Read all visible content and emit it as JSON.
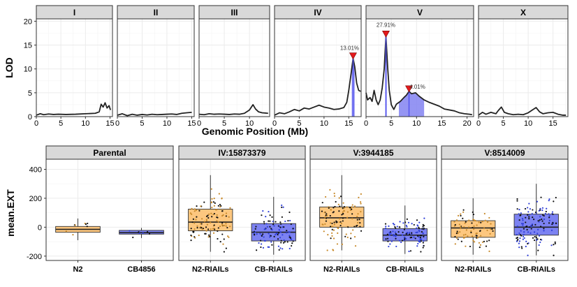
{
  "colors": {
    "strip_bg": "#d9d9d9",
    "line": "#222222",
    "peak_marker": "#e41a1c",
    "ci_fill": "#7b7bf0",
    "ci_line": "#5555ee",
    "n2_fill": "#fdc77f",
    "n2_points": "#c88a2a",
    "cb_fill": "#7c82f2",
    "cb_points": "#2f3fd8",
    "grid": "#ebebeb"
  },
  "chart_data": [
    {
      "type": "line",
      "title": "",
      "xlabel": "Genomic Position (Mb)",
      "ylabel": "LOD",
      "ylim": [
        0,
        20.5
      ],
      "yticks": [
        0,
        5,
        10,
        15,
        20
      ],
      "facets": [
        {
          "label": "I",
          "xlim": [
            0,
            15.5
          ],
          "xticks": [
            0,
            5,
            10,
            15
          ],
          "points": [
            [
              0,
              0.3
            ],
            [
              0.8,
              0.6
            ],
            [
              1.5,
              0.4
            ],
            [
              2.5,
              0.55
            ],
            [
              3.5,
              0.45
            ],
            [
              4.5,
              0.5
            ],
            [
              6,
              0.45
            ],
            [
              8,
              0.5
            ],
            [
              10,
              0.6
            ],
            [
              12,
              0.7
            ],
            [
              12.8,
              1.0
            ],
            [
              13.2,
              2.6
            ],
            [
              13.6,
              2.0
            ],
            [
              14.0,
              2.9
            ],
            [
              14.4,
              1.8
            ],
            [
              14.8,
              2.3
            ],
            [
              15.1,
              1.4
            ]
          ],
          "peak": null,
          "ci": null
        },
        {
          "label": "II",
          "xlim": [
            0,
            15.5
          ],
          "xticks": [
            0,
            5,
            10,
            15
          ],
          "points": [
            [
              0,
              0.3
            ],
            [
              1,
              0.6
            ],
            [
              2,
              0.2
            ],
            [
              3,
              0.5
            ],
            [
              4,
              0.3
            ],
            [
              5,
              0.45
            ],
            [
              6,
              0.35
            ],
            [
              7,
              0.5
            ],
            [
              8,
              0.4
            ],
            [
              9,
              0.45
            ],
            [
              10,
              0.5
            ],
            [
              11,
              0.55
            ],
            [
              12,
              0.45
            ],
            [
              13,
              0.7
            ],
            [
              14,
              0.8
            ],
            [
              15,
              0.9
            ]
          ],
          "peak": null,
          "ci": null
        },
        {
          "label": "III",
          "xlim": [
            0,
            14
          ],
          "xticks": [
            0,
            5,
            10
          ],
          "points": [
            [
              0,
              0.5
            ],
            [
              1,
              0.4
            ],
            [
              2,
              0.6
            ],
            [
              3,
              0.5
            ],
            [
              4,
              0.55
            ],
            [
              5,
              0.5
            ],
            [
              6,
              0.45
            ],
            [
              7,
              0.55
            ],
            [
              8,
              0.5
            ],
            [
              9,
              0.7
            ],
            [
              10,
              1.4
            ],
            [
              10.7,
              2.5
            ],
            [
              11.2,
              1.6
            ],
            [
              11.8,
              1.0
            ],
            [
              12.5,
              0.8
            ],
            [
              13.7,
              0.7
            ]
          ],
          "peak": null,
          "ci": null
        },
        {
          "label": "IV",
          "xlim": [
            0,
            17.5
          ],
          "xticks": [
            0,
            5,
            10,
            15
          ],
          "points": [
            [
              0,
              0.3
            ],
            [
              1,
              0.8
            ],
            [
              2,
              0.6
            ],
            [
              3,
              1.0
            ],
            [
              4,
              1.5
            ],
            [
              5,
              1.2
            ],
            [
              6,
              1.8
            ],
            [
              7,
              1.6
            ],
            [
              8,
              2.0
            ],
            [
              9,
              2.4
            ],
            [
              10,
              2.0
            ],
            [
              11,
              1.8
            ],
            [
              12,
              1.5
            ],
            [
              13,
              1.6
            ],
            [
              14,
              1.9
            ],
            [
              14.6,
              3.0
            ],
            [
              15.0,
              5.5
            ],
            [
              15.4,
              8.5
            ],
            [
              15.87,
              12.2
            ],
            [
              16.2,
              10.5
            ],
            [
              16.6,
              7.0
            ],
            [
              17.0,
              5.5
            ],
            [
              17.4,
              5.3
            ]
          ],
          "peak": {
            "x": 15.87,
            "y": 12.2,
            "label": "13.01%"
          },
          "ci": [
            15.6,
            16.2
          ]
        },
        {
          "label": "V",
          "xlim": [
            0,
            21.3
          ],
          "xticks": [
            0,
            5,
            10,
            15,
            20
          ],
          "points": [
            [
              0,
              5.0
            ],
            [
              0.3,
              3.5
            ],
            [
              0.8,
              4.0
            ],
            [
              1.2,
              3.2
            ],
            [
              1.6,
              5.5
            ],
            [
              2.0,
              3.5
            ],
            [
              2.4,
              2.5
            ],
            [
              2.8,
              3.5
            ],
            [
              3.2,
              6.0
            ],
            [
              3.6,
              10.0
            ],
            [
              3.94,
              16.8
            ],
            [
              4.3,
              10.0
            ],
            [
              4.6,
              5.5
            ],
            [
              5.0,
              2.5
            ],
            [
              5.5,
              1.5
            ],
            [
              6.0,
              2.6
            ],
            [
              6.8,
              3.2
            ],
            [
              7.5,
              4.0
            ],
            [
              8.0,
              4.5
            ],
            [
              8.51,
              5.3
            ],
            [
              9.0,
              4.8
            ],
            [
              9.8,
              5.0
            ],
            [
              10.5,
              4.3
            ],
            [
              11.5,
              3.5
            ],
            [
              12.5,
              3.0
            ],
            [
              13.5,
              2.6
            ],
            [
              14.5,
              2.2
            ],
            [
              15.5,
              1.6
            ],
            [
              16.5,
              1.4
            ],
            [
              17.5,
              1.2
            ],
            [
              18.5,
              0.8
            ],
            [
              19.5,
              0.6
            ],
            [
              20.5,
              0.5
            ],
            [
              21.0,
              0.4
            ]
          ],
          "peak": {
            "x": 3.94,
            "y": 16.8,
            "label": "27.91%"
          },
          "peak2": {
            "x": 8.51,
            "y": 5.3,
            "label": "4.01%"
          },
          "ci": [
            3.8,
            4.1
          ],
          "ci2": [
            6.5,
            11.5
          ]
        },
        {
          "label": "X",
          "xlim": [
            0,
            18
          ],
          "xticks": [
            0,
            5,
            10,
            15
          ],
          "points": [
            [
              0,
              0.3
            ],
            [
              0.8,
              0.9
            ],
            [
              1.5,
              0.5
            ],
            [
              2.5,
              0.9
            ],
            [
              3.5,
              0.6
            ],
            [
              4,
              1.3
            ],
            [
              4.6,
              2.0
            ],
            [
              5.2,
              0.9
            ],
            [
              6,
              0.6
            ],
            [
              7,
              0.4
            ],
            [
              8,
              0.5
            ],
            [
              9,
              0.4
            ],
            [
              10,
              0.8
            ],
            [
              11,
              1.5
            ],
            [
              11.6,
              1.9
            ],
            [
              12.3,
              1.0
            ],
            [
              13,
              0.6
            ],
            [
              14,
              0.8
            ],
            [
              15,
              0.9
            ],
            [
              16,
              0.5
            ],
            [
              17,
              0.3
            ],
            [
              17.6,
              0.3
            ]
          ],
          "peak": null,
          "ci": null
        }
      ]
    },
    {
      "type": "box",
      "title": "",
      "xlabel": "",
      "ylabel": "mean.EXT",
      "ylim": [
        -230,
        470
      ],
      "yticks": [
        -200,
        0,
        200,
        400
      ],
      "facets": [
        {
          "label": "Parental",
          "groups": [
            {
              "name": "N2",
              "q1": -35,
              "median": -15,
              "q3": 5,
              "wlow": -90,
              "whigh": 60,
              "n": 8,
              "spread": 40,
              "center": -15
            },
            {
              "name": "CB4856",
              "q1": -48,
              "median": -38,
              "q3": -22,
              "wlow": -75,
              "whigh": -5,
              "n": 7,
              "spread": 20,
              "center": -38
            }
          ]
        },
        {
          "label": "IV:15873379",
          "groups": [
            {
              "name": "N2-RIAILs",
              "q1": -25,
              "median": 35,
              "q3": 125,
              "wlow": -170,
              "whigh": 360,
              "n": 120,
              "spread": 95,
              "center": 40
            },
            {
              "name": "CB-RIAILs",
              "q1": -95,
              "median": -35,
              "q3": 25,
              "wlow": -190,
              "whigh": 210,
              "n": 110,
              "spread": 70,
              "center": -35
            }
          ]
        },
        {
          "label": "V:3944185",
          "groups": [
            {
              "name": "N2-RIAILs",
              "q1": 0,
              "median": 65,
              "q3": 140,
              "wlow": -160,
              "whigh": 360,
              "n": 115,
              "spread": 90,
              "center": 65
            },
            {
              "name": "CB-RIAILs",
              "q1": -95,
              "median": -55,
              "q3": -10,
              "wlow": -185,
              "whigh": 150,
              "n": 115,
              "spread": 55,
              "center": -55
            }
          ]
        },
        {
          "label": "V:8514009",
          "groups": [
            {
              "name": "N2-RIAILs",
              "q1": -70,
              "median": -5,
              "q3": 45,
              "wlow": -190,
              "whigh": 200,
              "n": 85,
              "spread": 70,
              "center": -10
            },
            {
              "name": "CB-RIAILs",
              "q1": -55,
              "median": 0,
              "q3": 90,
              "wlow": -195,
              "whigh": 300,
              "n": 135,
              "spread": 85,
              "center": 10
            }
          ]
        }
      ]
    }
  ]
}
